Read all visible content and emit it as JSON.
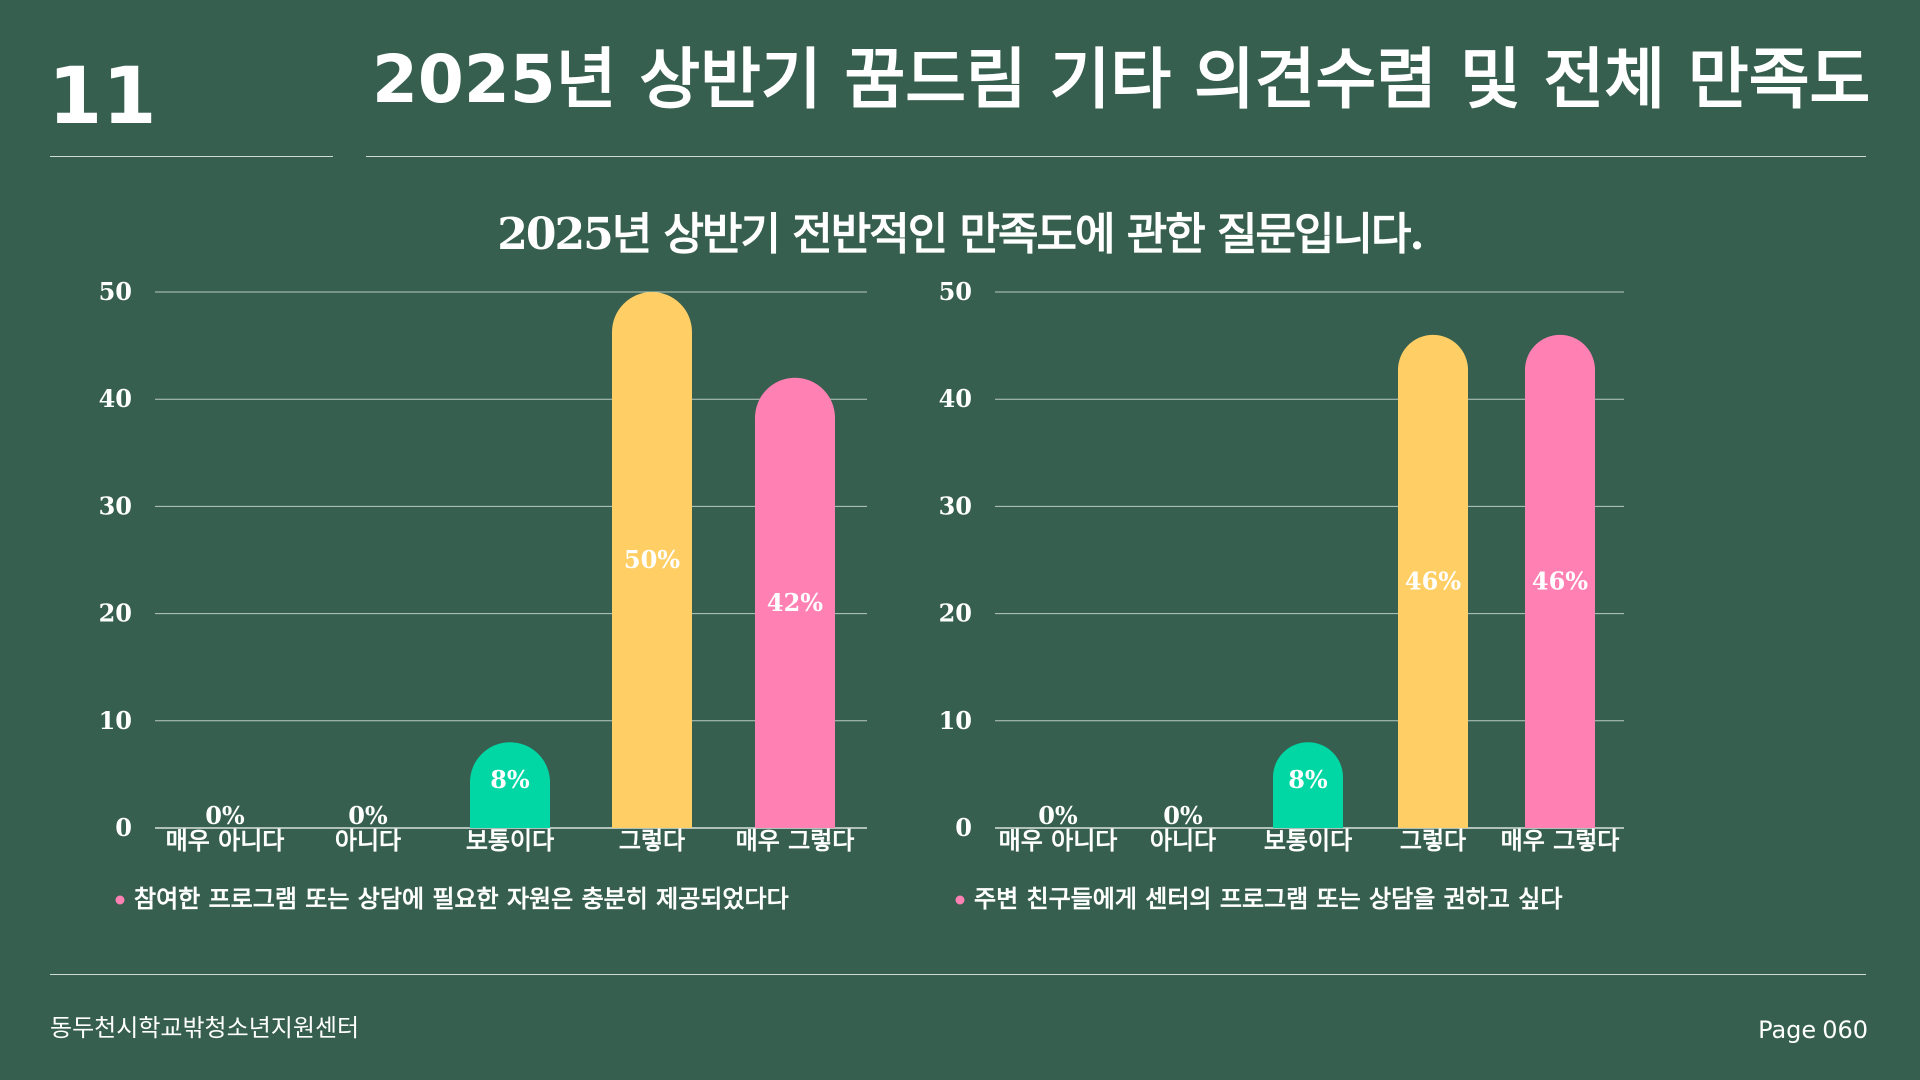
{
  "slide": {
    "number": "11",
    "title": "2025년 상반기 꿈드림 기타 의견수렴 및 전체 만족도",
    "subtitle": "2025년 상반기 전반적인 만족도에 관한 질문입니다."
  },
  "footer": {
    "org": "동두천시학교밖청소년지원센터",
    "page_label": "Page",
    "page_number": "060"
  },
  "colors": {
    "background": "#365f4f",
    "green": "#00d7a4",
    "yellow": "#ffcf66",
    "pink": "#ff80b3",
    "legend_dot": "#ff80b3"
  },
  "chart_data": [
    {
      "type": "bar",
      "categories": [
        "매우 아니다",
        "아니다",
        "보통이다",
        "그렇다",
        "매우 그렇다"
      ],
      "values": [
        0,
        0,
        8,
        50,
        42
      ],
      "labels": [
        "0%",
        "0%",
        "8%",
        "50%",
        "42%"
      ],
      "bar_colors": [
        "#00d7a4",
        "#00d7a4",
        "#00d7a4",
        "#ffcf66",
        "#ff80b3"
      ],
      "yticks": [
        "0",
        "10",
        "20",
        "30",
        "40",
        "50"
      ],
      "ylim": [
        0,
        50
      ],
      "legend": "참여한 프로그램 또는 상담에 필요한 자원은 충분히 제공되었다다",
      "grid": true
    },
    {
      "type": "bar",
      "categories": [
        "매우 아니다",
        "아니다",
        "보통이다",
        "그렇다",
        "매우 그렇다"
      ],
      "values": [
        0,
        0,
        8,
        46,
        46
      ],
      "labels": [
        "0%",
        "0%",
        "8%",
        "46%",
        "46%"
      ],
      "bar_colors": [
        "#00d7a4",
        "#00d7a4",
        "#00d7a4",
        "#ffcf66",
        "#ff80b3"
      ],
      "yticks": [
        "0",
        "10",
        "20",
        "30",
        "40",
        "50"
      ],
      "ylim": [
        0,
        50
      ],
      "legend": "주변 친구들에게 센터의 프로그램 또는 상담을 권하고 싶다",
      "grid": true
    }
  ]
}
